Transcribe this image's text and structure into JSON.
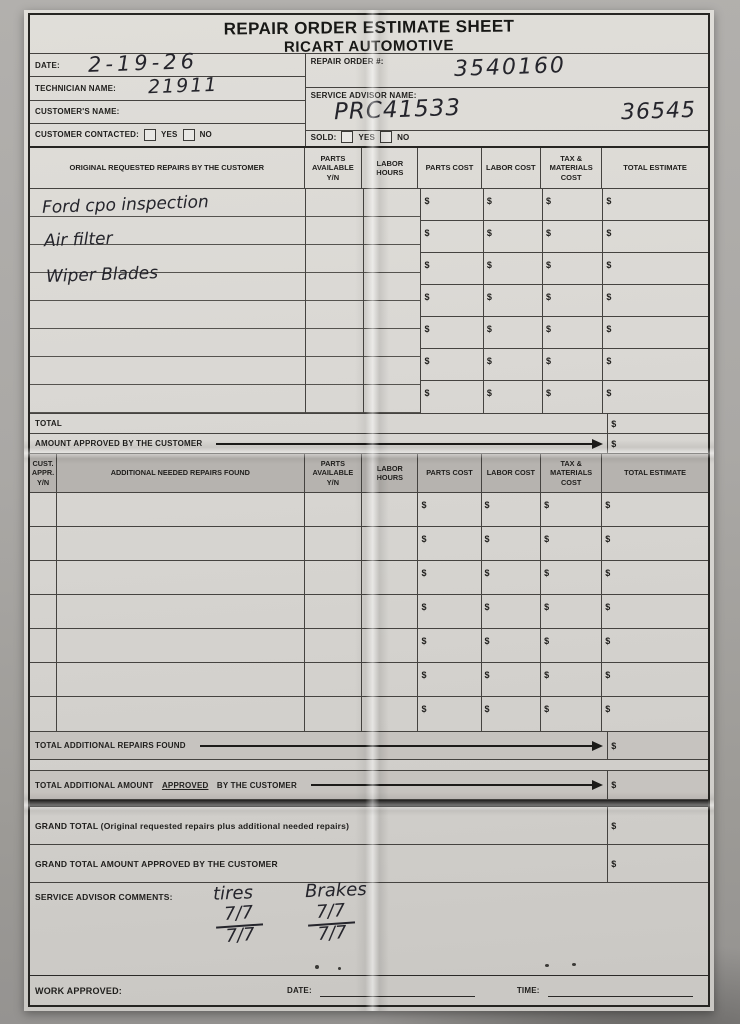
{
  "form": {
    "title_line1": "REPAIR ORDER ESTIMATE SHEET",
    "title_line2": "RICART AUTOMOTIVE"
  },
  "header": {
    "date": {
      "label": "DATE:",
      "value": "2-19-26"
    },
    "technician": {
      "label": "TECHNICIAN NAME:",
      "value": "21911"
    },
    "customer": {
      "label": "CUSTOMER'S NAME:",
      "value": ""
    },
    "contacted": {
      "label": "CUSTOMER CONTACTED:",
      "yes": "YES",
      "no": "NO"
    },
    "repair_order": {
      "label": "REPAIR ORDER #:",
      "value": "3540160"
    },
    "advisor": {
      "label": "SERVICE ADVISOR NAME:",
      "value": "PRC41533",
      "value_right": "36545"
    },
    "sold": {
      "label": "SOLD:",
      "yes": "YES",
      "no": "NO"
    }
  },
  "table1": {
    "headers": [
      "ORIGINAL REQUESTED REPAIRS BY THE CUSTOMER",
      "PARTS AVAILABLE Y/N",
      "LABOR HOURS",
      "PARTS COST",
      "LABOR COST",
      "TAX & MATERIALS COST",
      "TOTAL ESTIMATE"
    ],
    "entries": [
      "Ford cpo inspection",
      "Air filter",
      "Wiper Blades"
    ],
    "rows": 7,
    "dollar": "$",
    "total_label": "TOTAL",
    "amount_approved_label": "AMOUNT APPROVED BY THE CUSTOMER"
  },
  "table2": {
    "headers": [
      "CUST. APPR. Y/N",
      "ADDITIONAL NEEDED REPAIRS FOUND",
      "PARTS AVAILABLE Y/N",
      "LABOR HOURS",
      "PARTS COST",
      "LABOR COST",
      "TAX & MATERIALS COST",
      "TOTAL ESTIMATE"
    ],
    "rows": 7,
    "dollar": "$",
    "total_additional_label": "TOTAL ADDITIONAL REPAIRS FOUND",
    "total_additional_approved": {
      "prefix": "TOTAL ADDITIONAL AMOUNT ",
      "underlined": "APPROVED",
      "suffix": " BY THE CUSTOMER"
    }
  },
  "grand_totals": {
    "grand_total_label": "GRAND TOTAL (Original requested repairs plus additional needed repairs)",
    "grand_total_approved_label": "GRAND TOTAL AMOUNT APPROVED BY THE CUSTOMER",
    "dollar": "$"
  },
  "comments": {
    "label": "SERVICE ADVISOR COMMENTS:",
    "tires": {
      "label": "tires",
      "top": "7/7",
      "bottom": "7/7"
    },
    "brakes": {
      "label": "Brakes",
      "top": "7/7",
      "bottom": "7/7"
    }
  },
  "footer": {
    "work_approved_label": "WORK APPROVED:",
    "date_label": "DATE:",
    "time_label": "TIME:"
  }
}
